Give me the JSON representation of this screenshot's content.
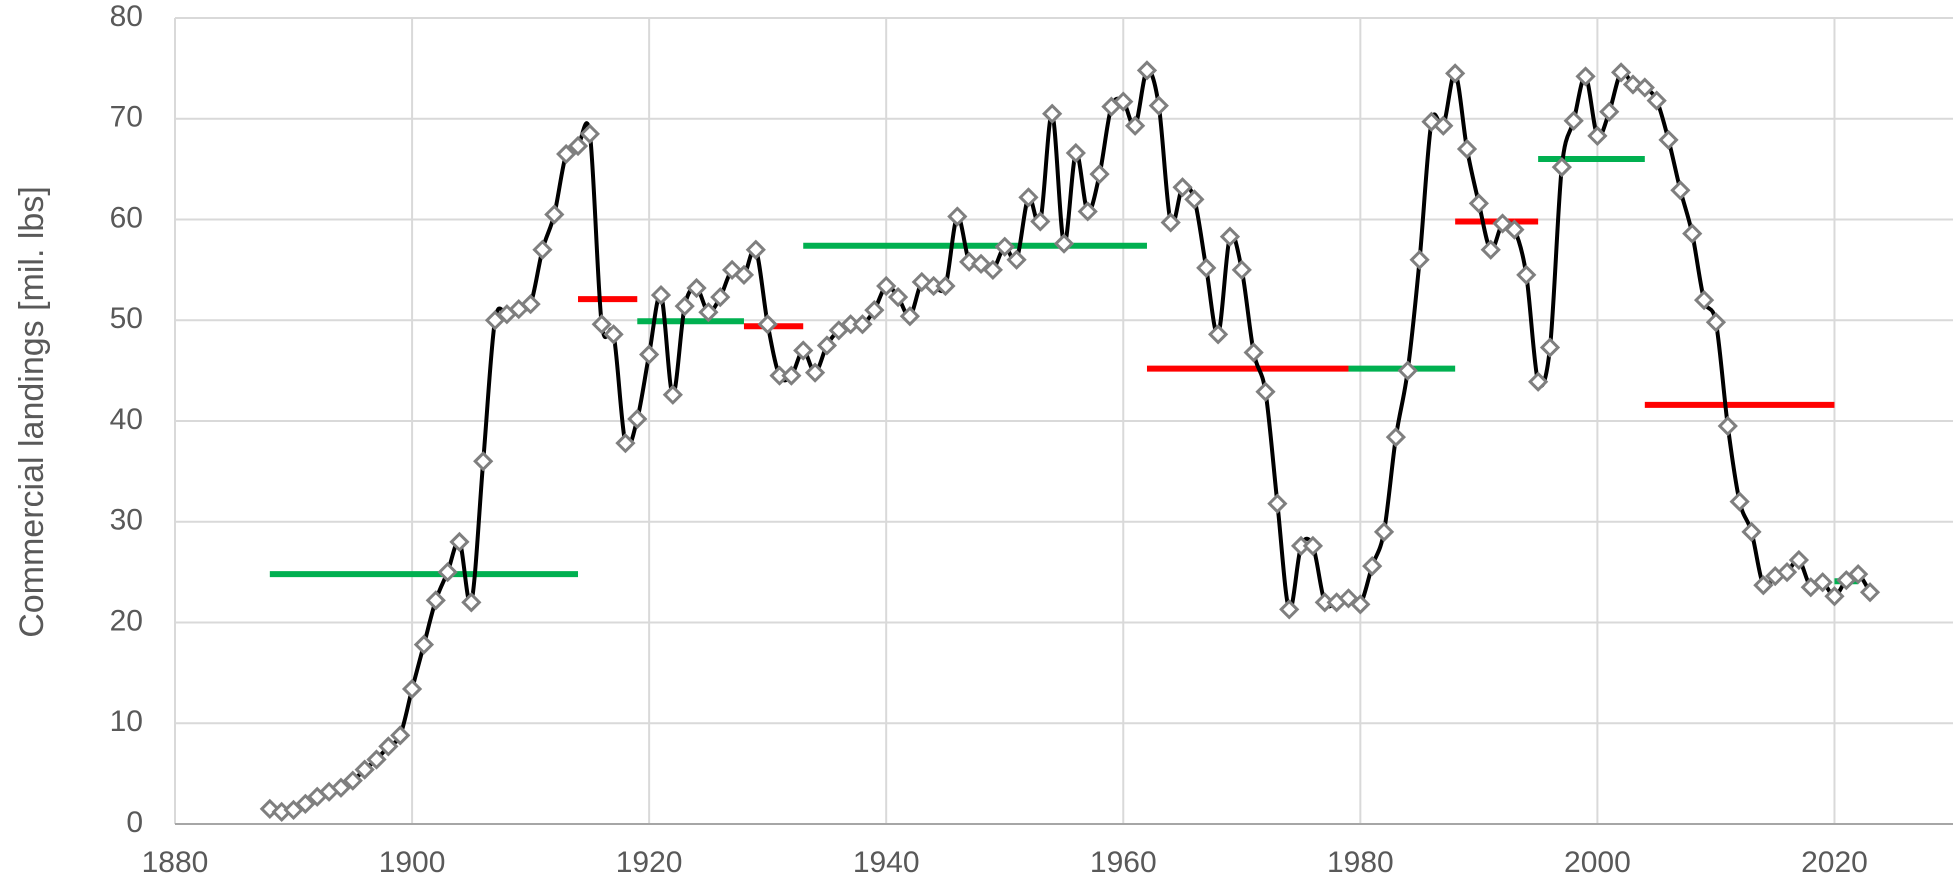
{
  "chart_data": {
    "type": "line",
    "title": "",
    "xlabel": "",
    "ylabel": "Commercial landings [mil. lbs]",
    "xlim": [
      1880,
      2030
    ],
    "ylim": [
      0,
      80
    ],
    "grid": true,
    "x_ticks": [
      1880,
      1900,
      1920,
      1940,
      1960,
      1980,
      2000,
      2020
    ],
    "y_ticks": [
      0,
      10,
      20,
      30,
      40,
      50,
      60,
      70,
      80
    ],
    "colors": {
      "line": "#000000",
      "marker_stroke": "#7f7f7f",
      "marker_fill": "#ffffff",
      "high_period": "#00b050",
      "low_period": "#ff0000",
      "grid": "#d9d9d9",
      "text": "#595959"
    },
    "series": [
      {
        "x": [
          1888,
          1889,
          1890,
          1891,
          1892,
          1893,
          1894,
          1895,
          1896,
          1897,
          1898,
          1899,
          1900,
          1901,
          1902,
          1903,
          1904,
          1905,
          1906,
          1907,
          1908,
          1909,
          1910,
          1911,
          1912,
          1913,
          1914,
          1915,
          1916,
          1917,
          1918,
          1919,
          1920,
          1921,
          1922,
          1923,
          1924,
          1925,
          1926,
          1927,
          1928,
          1929,
          1930,
          1931,
          1932,
          1933,
          1934,
          1935,
          1936,
          1937,
          1938,
          1939,
          1940,
          1941,
          1942,
          1943,
          1944,
          1945,
          1946,
          1947,
          1948,
          1949,
          1950,
          1951,
          1952,
          1953,
          1954,
          1955,
          1956,
          1957,
          1958,
          1959,
          1960,
          1961,
          1962,
          1963,
          1964,
          1965,
          1966,
          1967,
          1968,
          1969,
          1970,
          1971,
          1972,
          1973,
          1974,
          1975,
          1976,
          1977,
          1978,
          1979,
          1980,
          1981,
          1982,
          1983,
          1984,
          1985,
          1986,
          1987,
          1988,
          1989,
          1990,
          1991,
          1992,
          1993,
          1994,
          1995,
          1996,
          1997,
          1998,
          1999,
          2000,
          2001,
          2002,
          2003,
          2004,
          2005,
          2006,
          2007,
          2008,
          2009,
          2010,
          2011,
          2012,
          2013,
          2014,
          2015,
          2016,
          2017,
          2018,
          2019,
          2020,
          2021,
          2022,
          2023
        ],
        "y": [
          1.5,
          1.2,
          1.4,
          2.0,
          2.7,
          3.2,
          3.6,
          4.3,
          5.4,
          6.4,
          7.7,
          8.8,
          13.4,
          17.8,
          22.2,
          25.0,
          28.0,
          22.0,
          36.0,
          50.0,
          50.6,
          51.1,
          51.6,
          57.0,
          60.5,
          66.5,
          67.3,
          68.5,
          49.6,
          48.6,
          37.8,
          40.2,
          46.6,
          52.5,
          42.6,
          51.4,
          53.2,
          50.8,
          52.3,
          55.0,
          54.5,
          57.0,
          49.6,
          44.5,
          44.5,
          47.0,
          44.8,
          47.5,
          49.0,
          49.6,
          49.6,
          51.0,
          53.4,
          52.3,
          50.4,
          53.8,
          53.4,
          53.4,
          60.3,
          55.8,
          55.6,
          55.0,
          57.3,
          56.0,
          62.2,
          59.8,
          70.5,
          57.6,
          66.6,
          60.8,
          64.5,
          71.2,
          71.7,
          69.3,
          74.8,
          71.3,
          59.7,
          63.2,
          62.0,
          55.2,
          48.6,
          58.3,
          55.0,
          46.8,
          42.9,
          31.8,
          21.3,
          27.6,
          27.6,
          22.0,
          22.0,
          22.4,
          21.8,
          25.6,
          29.0,
          38.4,
          45.0,
          56.0,
          69.7,
          69.3,
          74.5,
          67.0,
          61.6,
          57.0,
          59.6,
          59.0,
          54.5,
          43.9,
          47.3,
          65.2,
          69.8,
          74.2,
          68.3,
          70.7,
          74.6,
          73.4,
          73.1,
          71.8,
          67.9,
          62.9,
          58.6,
          52.0,
          49.8,
          39.5,
          32.0,
          29.0,
          23.7,
          24.6,
          25.0,
          26.2,
          23.5,
          24.0,
          22.6,
          24.2,
          24.8,
          23.0
        ]
      }
    ],
    "period_means": [
      {
        "kind": "high",
        "x_start": 1888,
        "x_end": 1914,
        "value": 24.8
      },
      {
        "kind": "low",
        "x_start": 1914,
        "x_end": 1919,
        "value": 52.1
      },
      {
        "kind": "high",
        "x_start": 1919,
        "x_end": 1928,
        "value": 49.9
      },
      {
        "kind": "low",
        "x_start": 1928,
        "x_end": 1933,
        "value": 49.4
      },
      {
        "kind": "high",
        "x_start": 1933,
        "x_end": 1962,
        "value": 57.4
      },
      {
        "kind": "low",
        "x_start": 1962,
        "x_end": 1979,
        "value": 45.2
      },
      {
        "kind": "high",
        "x_start": 1979,
        "x_end": 1988,
        "value": 45.2
      },
      {
        "kind": "low",
        "x_start": 1988,
        "x_end": 1995,
        "value": 59.8
      },
      {
        "kind": "high",
        "x_start": 1995,
        "x_end": 2004,
        "value": 66.0
      },
      {
        "kind": "low",
        "x_start": 2004,
        "x_end": 2020,
        "value": 41.6
      },
      {
        "kind": "high",
        "x_start": 2020,
        "x_end": 2022,
        "value": 24.1
      }
    ]
  }
}
